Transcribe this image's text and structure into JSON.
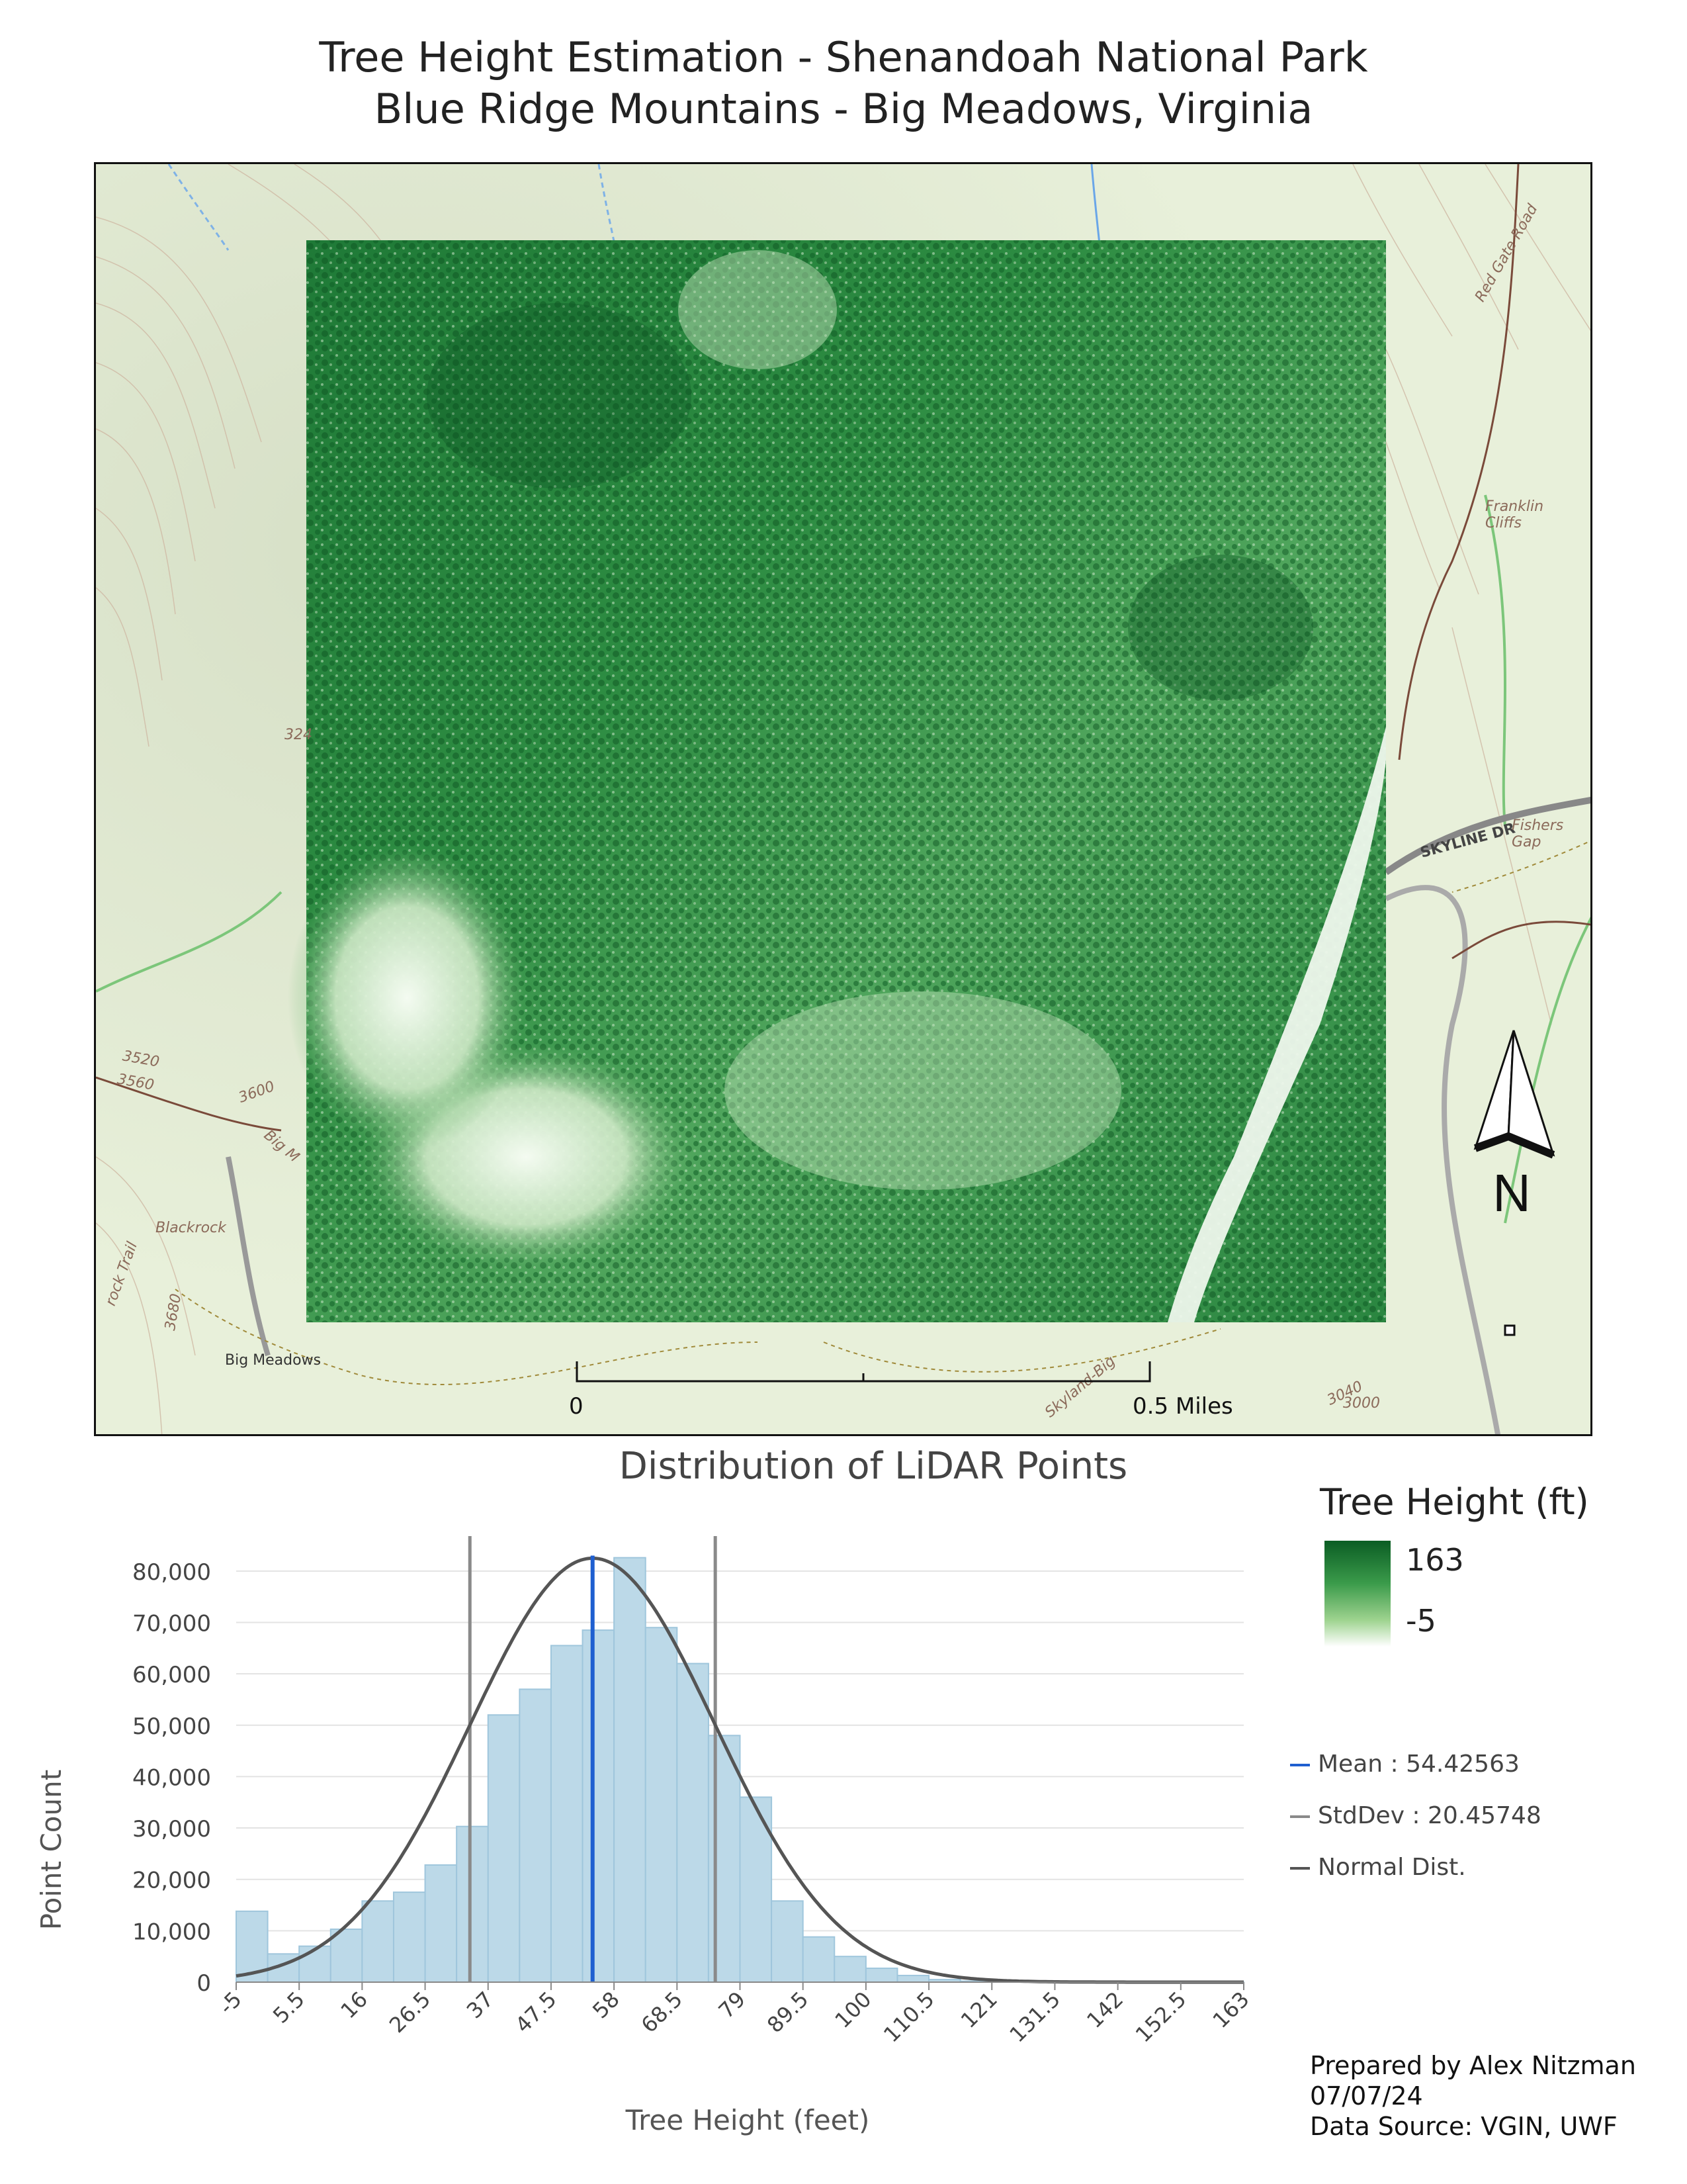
{
  "title": {
    "line1": "Tree Height Estimation - Shenandoah National Park",
    "line2": "Blue Ridge Mountains - Big Meadows, Virginia"
  },
  "map": {
    "labels": {
      "red_gate_road": "Red Gate Road",
      "franklin_cliffs": "Franklin Cliffs",
      "skyline_dr": "SKYLINE DR",
      "fishers_gap": "Fishers Gap",
      "blackrock": "Blackrock",
      "big_meadows": "Big Meadows",
      "rock_trail": "rock Trail",
      "skyland_big": "Skyland-Big",
      "big_m": "Big M",
      "contour_3520": "3520",
      "contour_3560": "3560",
      "contour_3600": "3600",
      "contour_3240": "324",
      "contour_3040": "3040",
      "contour_3000": "3000",
      "contour_3680": "3680"
    },
    "scale": {
      "start": "0",
      "end": "0.5 Miles"
    },
    "north": "N",
    "colors": {
      "raster_dark": "#0b5d24",
      "raster_light": "#ffffff",
      "basemap": "#e6efd8"
    }
  },
  "legend": {
    "title": "Tree Height (ft)",
    "max": "163",
    "min": "-5",
    "mean_label": "Mean : 54.42563",
    "stddev_label": "StdDev : 20.45748",
    "normal_label": "Normal Dist.",
    "colors": {
      "mean": "#1f5fd0",
      "stddev": "#8a8a8a",
      "normal": "#555555"
    }
  },
  "chart_data": {
    "type": "bar",
    "title": "Distribution of LiDAR Points",
    "xlabel": "Tree Height (feet)",
    "ylabel": "Point Count",
    "x_ticks": [
      "-5",
      "5.5",
      "16",
      "26.5",
      "37",
      "47.5",
      "58",
      "68.5",
      "79",
      "89.5",
      "100",
      "110.5",
      "121",
      "131.5",
      "142",
      "152.5",
      "163"
    ],
    "y_ticks": [
      "0",
      "10,000",
      "20,000",
      "30,000",
      "40,000",
      "50,000",
      "60,000",
      "70,000",
      "80,000"
    ],
    "xlim": [
      -5,
      163
    ],
    "ylim": [
      0,
      85000
    ],
    "bin_width": 5.25,
    "values": [
      13800,
      5500,
      7000,
      10300,
      15800,
      17500,
      22800,
      30300,
      52000,
      57000,
      65500,
      68500,
      82600,
      69000,
      62000,
      48000,
      36000,
      15800,
      8800,
      5000,
      2700,
      1300,
      500,
      200,
      100,
      50,
      30,
      20,
      10,
      10,
      5,
      5
    ],
    "mean": 54.42563,
    "stddev": 20.45748,
    "normal_peak": 82500,
    "colors": {
      "bars": "#bcd9e8",
      "bar_edge": "#9fc6dc"
    },
    "grid": true
  },
  "credit": {
    "line1": "Prepared by Alex Nitzman",
    "line2": "07/07/24",
    "line3": "Data Source: VGIN, UWF"
  }
}
